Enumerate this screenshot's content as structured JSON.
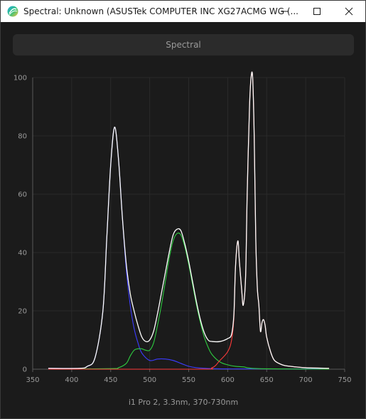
{
  "window": {
    "title": "Spectral: Unknown (ASUSTek COMPUTER INC XG27ACMG WG (...",
    "icons": {
      "app": "app-logo-icon",
      "minimize": "minimize-icon",
      "maximize": "maximize-icon",
      "close": "close-icon"
    }
  },
  "tab": {
    "label": "Spectral"
  },
  "chart_data": {
    "type": "line",
    "caption": "i1 Pro 2, 3.3nm, 370-730nm",
    "xlim": [
      350,
      750
    ],
    "ylim": [
      0,
      100
    ],
    "xticks": [
      350,
      400,
      450,
      500,
      550,
      600,
      650,
      700,
      750
    ],
    "yticks": [
      0,
      20,
      40,
      60,
      80,
      100
    ],
    "grid": true,
    "series": [
      {
        "color": "#3c3cff",
        "x": [
          370,
          410,
          420,
          430,
          440,
          445,
          450,
          455,
          460,
          465,
          470,
          475,
          480,
          485,
          490,
          500,
          510,
          520,
          530,
          540,
          550,
          560,
          580,
          600,
          620,
          650,
          700,
          730
        ],
        "values": [
          0.3,
          0.3,
          1,
          4,
          20,
          45,
          70,
          83,
          72,
          52,
          34,
          22,
          14,
          9,
          5.5,
          3,
          3.5,
          3.5,
          3,
          2,
          1,
          0.5,
          0.2,
          0.1,
          0.1,
          0.1,
          0.1,
          0.1
        ]
      },
      {
        "color": "#2ecc40",
        "x": [
          370,
          450,
          460,
          470,
          475,
          480,
          485,
          490,
          495,
          500,
          505,
          510,
          515,
          520,
          525,
          530,
          535,
          540,
          545,
          550,
          555,
          560,
          565,
          570,
          575,
          580,
          590,
          600,
          610,
          620,
          640,
          730
        ],
        "values": [
          0,
          0.2,
          0.5,
          2,
          4.5,
          6.5,
          7,
          7,
          6.5,
          6.5,
          9,
          15,
          22,
          30,
          38,
          44,
          46.5,
          46,
          42,
          36,
          29,
          22,
          16,
          11,
          7.5,
          5,
          2.5,
          1.5,
          1,
          0.8,
          0.2,
          0
        ]
      },
      {
        "color": "#ff3a3a",
        "x": [
          370,
          560,
          580,
          590,
          600,
          605,
          608,
          610,
          613,
          615,
          618,
          620,
          623,
          625,
          628,
          630,
          632,
          634,
          636,
          638,
          640,
          642,
          644,
          646,
          648,
          650,
          655,
          660,
          670,
          680,
          700,
          730
        ],
        "values": [
          0,
          0,
          0.5,
          3,
          6,
          10,
          18,
          35,
          44,
          37,
          27,
          22,
          32,
          60,
          90,
          100,
          100,
          80,
          45,
          28,
          22,
          13,
          16,
          17,
          15,
          11,
          6,
          3,
          1.5,
          1,
          0.5,
          0.3
        ]
      },
      {
        "color": "#ffffff",
        "x": [
          370,
          410,
          420,
          430,
          440,
          445,
          450,
          455,
          460,
          465,
          470,
          475,
          480,
          485,
          490,
          495,
          500,
          505,
          510,
          515,
          520,
          525,
          530,
          535,
          540,
          545,
          550,
          555,
          560,
          565,
          570,
          575,
          580,
          590,
          600,
          605,
          608,
          610,
          613,
          615,
          618,
          620,
          623,
          625,
          628,
          630,
          632,
          634,
          636,
          638,
          640,
          642,
          644,
          646,
          648,
          650,
          655,
          660,
          670,
          680,
          700,
          730
        ],
        "values": [
          0.3,
          0.3,
          1,
          4,
          20,
          45,
          70,
          83,
          72,
          52,
          36,
          26,
          20,
          15,
          11,
          9.5,
          10,
          13,
          19,
          26,
          33,
          40,
          46,
          48,
          47.5,
          43,
          37,
          30,
          23,
          17,
          12.5,
          10,
          9.5,
          9.5,
          10.5,
          12,
          19,
          35,
          44,
          37,
          27,
          22,
          32,
          60,
          90,
          100,
          100,
          80,
          45,
          28,
          22,
          13,
          16,
          17,
          15,
          11,
          6,
          3,
          1.5,
          1,
          0.5,
          0.3
        ]
      }
    ]
  }
}
